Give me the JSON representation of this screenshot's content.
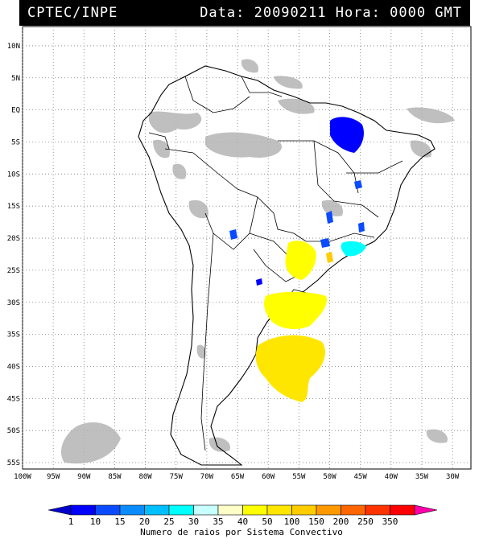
{
  "header": {
    "source": "CPTEC/INPE",
    "datetime": "Data: 20090211 Hora: 0000 GMT"
  },
  "map": {
    "lat_labels": [
      "10N",
      "5N",
      "EQ",
      "5S",
      "10S",
      "15S",
      "20S",
      "25S",
      "30S",
      "35S",
      "40S",
      "45S",
      "50S",
      "55S"
    ],
    "lon_labels": [
      "100W",
      "95W",
      "90W",
      "85W",
      "80W",
      "75W",
      "70W",
      "65W",
      "60W",
      "55W",
      "50W",
      "45W",
      "40W",
      "35W",
      "30W"
    ],
    "extent": {
      "lon_min": -100,
      "lon_max": -27,
      "lat_min": -56,
      "lat_max": 13
    },
    "grid": "dotted"
  },
  "legend": {
    "title": "Numero de raios por Sistema Convectivo",
    "bins": [
      {
        "label": "1",
        "color": "#0000ff"
      },
      {
        "label": "10",
        "color": "#0a4bff"
      },
      {
        "label": "15",
        "color": "#0a8cff"
      },
      {
        "label": "20",
        "color": "#00bfff"
      },
      {
        "label": "25",
        "color": "#00ffff"
      },
      {
        "label": "30",
        "color": "#c8ffff"
      },
      {
        "label": "35",
        "color": "#ffffc8"
      },
      {
        "label": "40",
        "color": "#ffff00"
      },
      {
        "label": "50",
        "color": "#ffe600"
      },
      {
        "label": "100",
        "color": "#ffcc00"
      },
      {
        "label": "150",
        "color": "#ff9900"
      },
      {
        "label": "200",
        "color": "#ff6600"
      },
      {
        "label": "250",
        "color": "#ff3300"
      },
      {
        "label": "350",
        "color": "#ff0000"
      }
    ],
    "low_color": "#0000cc",
    "high_color": "#ff00aa"
  },
  "colors": {
    "cloud": "#b4b4b4",
    "coast": "#000000",
    "grid": "#7a7a7a"
  }
}
